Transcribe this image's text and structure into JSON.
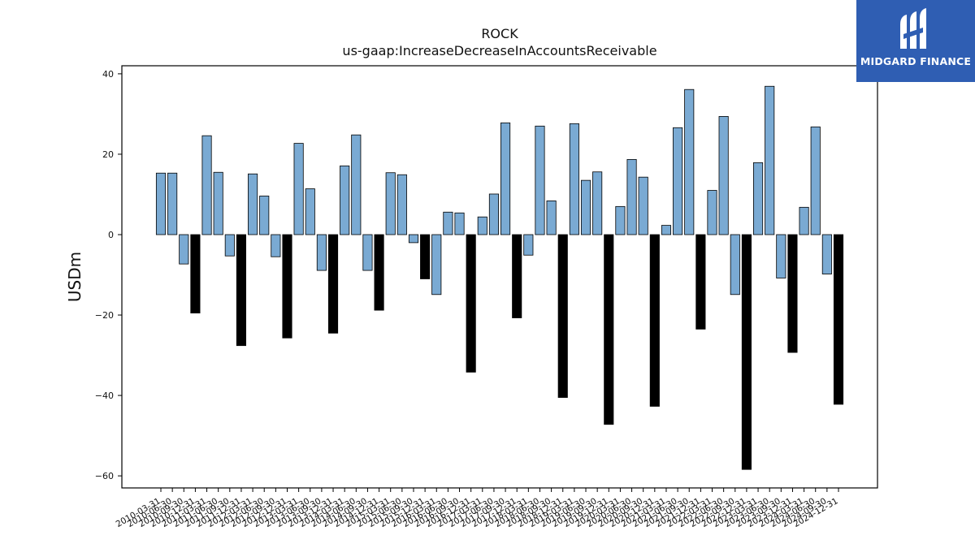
{
  "brand": {
    "name": "MIDGARD FINANCE",
    "color": "#2f5eb3",
    "icon": "mf-monogram-icon"
  },
  "chart_data": {
    "type": "bar",
    "title": "ROCK",
    "subtitle": "us-gaap:IncreaseDecreaseInAccountsReceivable",
    "xlabel": "",
    "ylabel": "USDm",
    "ylim": [
      -63,
      42
    ],
    "yticks": [
      -60,
      -40,
      -20,
      0,
      20,
      40
    ],
    "grid": false,
    "colors": {
      "quarter": "#7aaad3",
      "annual": "#000000"
    },
    "categories": [
      "2010-03-31",
      "2010-06-30",
      "2010-09-30",
      "2010-12-31",
      "2011-03-31",
      "2011-06-30",
      "2011-09-30",
      "2011-12-31",
      "2012-03-31",
      "2012-06-30",
      "2012-09-30",
      "2012-12-31",
      "2013-03-31",
      "2013-06-30",
      "2013-09-30",
      "2013-12-31",
      "2014-03-31",
      "2014-06-30",
      "2014-09-30",
      "2014-12-31",
      "2015-03-31",
      "2015-06-30",
      "2015-09-30",
      "2015-12-31",
      "2016-03-31",
      "2016-06-30",
      "2016-09-30",
      "2016-12-31",
      "2017-03-31",
      "2017-06-30",
      "2017-09-30",
      "2017-12-31",
      "2018-03-31",
      "2018-06-30",
      "2018-09-30",
      "2018-12-31",
      "2019-03-31",
      "2019-06-30",
      "2019-09-30",
      "2019-12-31",
      "2020-03-31",
      "2020-06-30",
      "2020-09-30",
      "2020-12-31",
      "2021-03-31",
      "2021-06-30",
      "2021-09-30",
      "2021-12-31",
      "2022-03-31",
      "2022-06-30",
      "2022-09-30",
      "2022-12-31",
      "2023-03-31",
      "2023-06-30",
      "2023-09-30",
      "2023-12-31",
      "2024-03-31",
      "2024-06-30",
      "2024-09-30",
      "2024-12-31"
    ],
    "values": [
      15.3,
      15.3,
      -7.3,
      -19.5,
      24.6,
      15.5,
      -5.3,
      -27.6,
      15.1,
      9.6,
      -5.5,
      -25.7,
      22.7,
      11.4,
      -8.9,
      -24.5,
      17.1,
      24.8,
      -8.9,
      -18.8,
      15.4,
      14.9,
      -2.0,
      -11.0,
      -14.9,
      5.6,
      5.4,
      -34.2,
      4.4,
      10.1,
      27.8,
      -20.7,
      -5.1,
      27.0,
      8.4,
      -40.5,
      27.6,
      13.5,
      15.6,
      -47.2,
      7.0,
      18.7,
      14.3,
      -42.7,
      2.3,
      26.6,
      36.1,
      -23.5,
      11.0,
      29.4,
      -14.9,
      -58.4,
      17.9,
      36.9,
      -10.8,
      -29.3,
      6.8,
      26.8,
      -9.8,
      -42.2
    ],
    "annual": [
      false,
      false,
      false,
      true,
      false,
      false,
      false,
      true,
      false,
      false,
      false,
      true,
      false,
      false,
      false,
      true,
      false,
      false,
      false,
      true,
      false,
      false,
      false,
      true,
      false,
      false,
      false,
      true,
      false,
      false,
      false,
      true,
      false,
      false,
      false,
      true,
      false,
      false,
      false,
      true,
      false,
      false,
      false,
      true,
      false,
      false,
      false,
      true,
      false,
      false,
      false,
      true,
      false,
      false,
      false,
      true,
      false,
      false,
      false,
      true
    ]
  }
}
